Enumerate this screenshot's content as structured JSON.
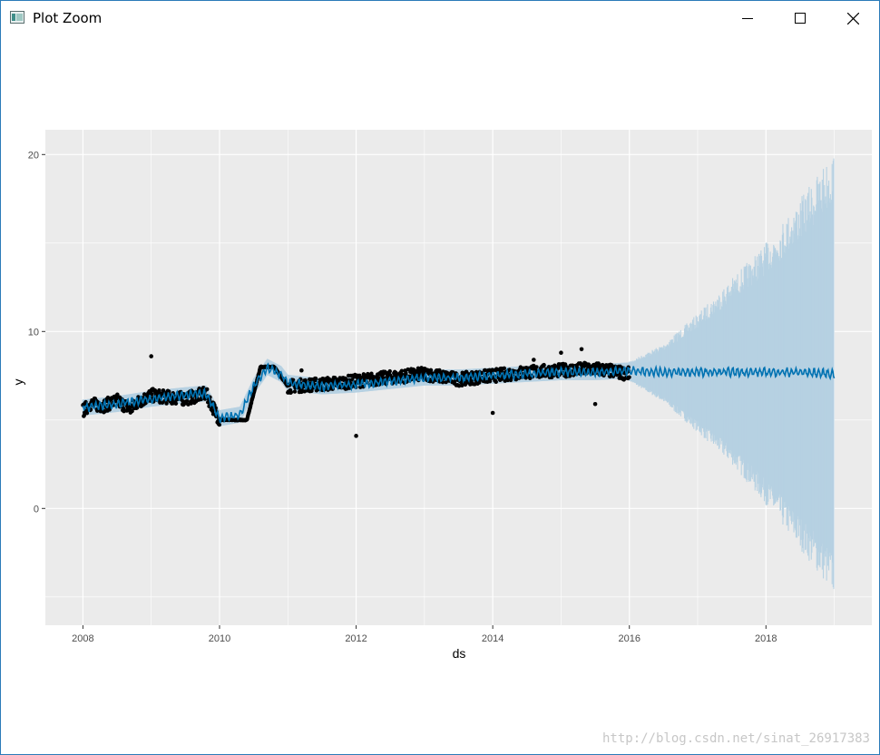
{
  "window": {
    "title": "Plot Zoom"
  },
  "watermark": "http://blog.csdn.net/sinat_26917383",
  "chart_data": {
    "type": "scatter",
    "xlabel": "ds",
    "ylabel": "y",
    "xlim": [
      2007.45,
      2019.55
    ],
    "ylim": [
      -6.6,
      21.4
    ],
    "x_ticks": [
      2008,
      2010,
      2012,
      2014,
      2016,
      2018
    ],
    "x_tick_labels": [
      "2008",
      "2010",
      "2012",
      "2014",
      "2016",
      "2018"
    ],
    "y_ticks": [
      0,
      10,
      20
    ],
    "y_tick_labels": [
      "0",
      "10",
      "20"
    ],
    "grid": true,
    "colors": {
      "panel_bg": "#ebebeb",
      "grid": "#ffffff",
      "points": "#000000",
      "forecast_line": "#0072b2",
      "uncertainty_band": "#b6d1e2"
    },
    "series": [
      {
        "role": "observed",
        "x": [
          2008.0,
          2008.1,
          2008.3,
          2008.5,
          2008.7,
          2008.8,
          2009.0,
          2009.2,
          2009.5,
          2009.8,
          2010.0,
          2010.2,
          2010.4,
          2010.6,
          2010.8,
          2011.0,
          2011.4,
          2011.8,
          2012.0,
          2012.5,
          2013.0,
          2013.5,
          2014.0,
          2014.5,
          2015.0,
          2015.5,
          2016.0
        ],
        "y": [
          5.5,
          5.9,
          5.8,
          6.1,
          5.6,
          6.0,
          6.4,
          6.3,
          6.2,
          6.5,
          5.0,
          5.0,
          5.0,
          8.0,
          8.0,
          6.9,
          7.0,
          7.1,
          7.2,
          7.4,
          7.6,
          7.3,
          7.5,
          7.7,
          7.8,
          7.9,
          7.6
        ],
        "outliers": [
          [
            2009.0,
            8.6
          ],
          [
            2011.2,
            7.8
          ],
          [
            2012.0,
            4.1
          ],
          [
            2014.0,
            5.4
          ],
          [
            2014.6,
            8.4
          ],
          [
            2015.0,
            8.8
          ],
          [
            2015.3,
            9.0
          ],
          [
            2015.5,
            5.9
          ]
        ]
      },
      {
        "role": "forecast",
        "x": [
          2008.0,
          2008.5,
          2009.0,
          2009.5,
          2009.8,
          2010.0,
          2010.3,
          2010.5,
          2010.7,
          2010.9,
          2011.0,
          2011.5,
          2012.0,
          2012.5,
          2013.0,
          2013.5,
          2014.0,
          2014.5,
          2015.0,
          2015.5,
          2016.0,
          2016.5,
          2017.0,
          2017.5,
          2018.0,
          2018.5,
          2019.0
        ],
        "y": [
          5.7,
          5.9,
          6.2,
          6.4,
          6.5,
          5.1,
          5.3,
          6.9,
          8.0,
          7.6,
          7.1,
          6.9,
          7.0,
          7.2,
          7.4,
          7.4,
          7.5,
          7.6,
          7.7,
          7.7,
          7.8,
          7.7,
          7.7,
          7.7,
          7.7,
          7.7,
          7.6
        ]
      },
      {
        "role": "uncertainty_interval",
        "x": [
          2016.0,
          2016.5,
          2017.0,
          2017.5,
          2018.0,
          2018.5,
          2019.0
        ],
        "lower": [
          7.2,
          6.0,
          4.3,
          2.5,
          0.2,
          -2.3,
          -4.9
        ],
        "upper": [
          8.3,
          9.3,
          11.0,
          13.0,
          15.0,
          17.5,
          20.2
        ]
      }
    ]
  }
}
